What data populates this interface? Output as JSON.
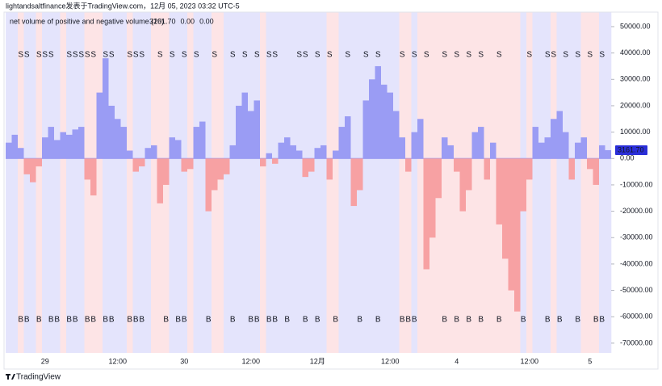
{
  "header": "lightandsaltfinance发表于TradingView.com，12月 05, 2023 03:32 UTC-5",
  "footer": "TradingView",
  "chart_data": {
    "type": "bar",
    "title": "net volume of positive and negative volume (20)",
    "legend_values": [
      {
        "label": "3161.70",
        "color": "#2a2ed8"
      },
      {
        "label": "0.00",
        "color": "#1b9a1b"
      },
      {
        "label": "0.00",
        "color": "#e0202a"
      }
    ],
    "positive_color": "#9a9cf4",
    "negative_color": "#f7a1a3",
    "sell_color": "#e0202a",
    "buy_color": "#1b8a1b",
    "grid": false,
    "ylim": [
      -73700,
      55500
    ],
    "yticks": [
      {
        "value": 50000,
        "label": "50000.00"
      },
      {
        "value": 40000,
        "label": "40000.00"
      },
      {
        "value": 30000,
        "label": "30000.00"
      },
      {
        "value": 20000,
        "label": "20000.00"
      },
      {
        "value": 10000,
        "label": "10000.00"
      },
      {
        "value": 0,
        "label": "0.00"
      },
      {
        "value": -10000,
        "label": "-10000.00"
      },
      {
        "value": -20000,
        "label": "-20000.00"
      },
      {
        "value": -30000,
        "label": "-30000.00"
      },
      {
        "value": -40000,
        "label": "-40000.00"
      },
      {
        "value": -50000,
        "label": "-50000.00"
      },
      {
        "value": -60000,
        "label": "-60000.00"
      },
      {
        "value": -70000,
        "label": "-70000.00"
      }
    ],
    "categories": [
      null,
      null,
      null,
      null,
      null,
      null,
      "29",
      null,
      null,
      null,
      null,
      null,
      null,
      null,
      null,
      null,
      null,
      null,
      "12:00",
      null,
      null,
      null,
      null,
      null,
      null,
      null,
      null,
      null,
      null,
      "30",
      null,
      null,
      null,
      null,
      null,
      null,
      null,
      null,
      null,
      null,
      "12:00",
      null,
      null,
      null,
      null,
      null,
      null,
      null,
      null,
      null,
      null,
      "12月",
      null,
      null,
      null,
      null,
      null,
      null,
      null,
      null,
      null,
      null,
      null,
      "12:00",
      null,
      null,
      null,
      null,
      null,
      null,
      null,
      null,
      null,
      null,
      "4",
      null,
      null,
      null,
      null,
      null,
      null,
      null,
      null,
      null,
      null,
      null,
      "12:00",
      null,
      null,
      null,
      null,
      null,
      null,
      null,
      null,
      null,
      "5",
      null,
      null,
      null
    ],
    "values": [
      6000,
      9000,
      4000,
      -6000,
      -9000,
      -3000,
      8000,
      12000,
      7000,
      10000,
      9000,
      11000,
      12000,
      -8000,
      -14000,
      25000,
      38000,
      20000,
      15000,
      12000,
      3000,
      -5000,
      -3000,
      4000,
      5000,
      -17000,
      -10000,
      8000,
      7000,
      -5000,
      -4000,
      12000,
      14000,
      -20000,
      -12000,
      -8000,
      -6000,
      5000,
      20000,
      25000,
      18000,
      22000,
      -3000,
      2000,
      -2000,
      6000,
      8000,
      5000,
      3000,
      -7000,
      -5000,
      4000,
      5000,
      -8000,
      3000,
      12000,
      16000,
      -18000,
      -12000,
      22000,
      30000,
      35000,
      28000,
      25000,
      18000,
      8000,
      -5000,
      10000,
      15000,
      -42000,
      -30000,
      -15000,
      8000,
      5000,
      -5000,
      -20000,
      -12000,
      10000,
      12000,
      -8000,
      6000,
      -25000,
      -38000,
      -50000,
      -58000,
      -20000,
      -8000,
      12000,
      6000,
      8000,
      15000,
      18000,
      10000,
      -8000,
      6000,
      8000,
      -4000,
      -10000,
      5000,
      3161.7
    ],
    "sell_signals": [
      null,
      null,
      "S",
      "S",
      null,
      "S",
      "S",
      "S",
      null,
      null,
      "S",
      "S",
      "S",
      "S",
      "S",
      null,
      "S",
      "S",
      null,
      null,
      "S",
      "S",
      "S",
      null,
      null,
      "S",
      null,
      "S",
      null,
      "S",
      null,
      "S",
      null,
      null,
      "S",
      null,
      null,
      "S",
      null,
      "S",
      null,
      "S",
      null,
      "S",
      "S",
      null,
      null,
      null,
      "S",
      "S",
      null,
      "S",
      null,
      "S",
      null,
      null,
      "S",
      null,
      null,
      "S",
      null,
      "S",
      null,
      null,
      null,
      "S",
      null,
      "S",
      null,
      "S",
      null,
      null,
      "S",
      null,
      "S",
      null,
      "S",
      null,
      "S",
      null,
      null,
      "S",
      null,
      null,
      null,
      null,
      "S",
      null,
      null,
      "S",
      "S",
      null,
      "S",
      null,
      "S",
      null,
      "S",
      null,
      "S",
      null
    ],
    "buy_signals": [
      null,
      null,
      "B",
      "B",
      null,
      "B",
      null,
      "B",
      "B",
      null,
      "B",
      "B",
      null,
      "B",
      "B",
      null,
      "B",
      "B",
      null,
      null,
      "B",
      "B",
      "B",
      null,
      null,
      null,
      "B",
      null,
      "B",
      "B",
      null,
      null,
      null,
      "B",
      null,
      null,
      null,
      "B",
      null,
      null,
      "B",
      "B",
      null,
      "B",
      "B",
      null,
      "B",
      null,
      null,
      "B",
      null,
      "B",
      null,
      null,
      "B",
      null,
      null,
      null,
      "B",
      null,
      null,
      "B",
      null,
      null,
      null,
      "B",
      "B",
      "B",
      null,
      null,
      null,
      null,
      "B",
      null,
      "B",
      null,
      "B",
      null,
      "B",
      null,
      null,
      "B",
      null,
      null,
      null,
      "B",
      null,
      null,
      null,
      "B",
      null,
      "B",
      null,
      null,
      "B",
      null,
      null,
      "B",
      "B",
      null
    ],
    "background_colors": [
      "#e4e4fc",
      "#e4e4fc",
      "#fde4e6",
      "#e4e4fc",
      "#e4e4fc",
      "#fde4e6",
      "#e4e4fc",
      "#e4e4fc",
      "#e4e4fc",
      "#fde4e6",
      "#e4e4fc",
      "#e4e4fc",
      "#e4e4fc",
      "#fde4e6",
      "#fde4e6",
      "#fde4e6",
      "#e4e4fc",
      "#e4e4fc",
      "#e4e4fc",
      "#e4e4fc",
      "#fde4e6",
      "#e4e4fc",
      "#e4e4fc",
      "#e4e4fc",
      "#fde4e6",
      "#fde4e6",
      "#fde4e6",
      "#e4e4fc",
      "#e4e4fc",
      "#e4e4fc",
      "#fde4e6",
      "#e4e4fc",
      "#e4e4fc",
      "#e4e4fc",
      "#fde4e6",
      "#fde4e6",
      "#e4e4fc",
      "#e4e4fc",
      "#e4e4fc",
      "#e4e4fc",
      "#e4e4fc",
      "#e4e4fc",
      "#fde4e6",
      "#e4e4fc",
      "#e4e4fc",
      "#e4e4fc",
      "#e4e4fc",
      "#e4e4fc",
      "#e4e4fc",
      "#e4e4fc",
      "#e4e4fc",
      "#e4e4fc",
      "#e4e4fc",
      "#fde4e6",
      "#fde4e6",
      "#e4e4fc",
      "#e4e4fc",
      "#e4e4fc",
      "#e4e4fc",
      "#e4e4fc",
      "#e4e4fc",
      "#e4e4fc",
      "#e4e4fc",
      "#e4e4fc",
      "#e4e4fc",
      "#fde4e6",
      "#fde4e6",
      "#e4e4fc",
      "#fde4e6",
      "#fde4e6",
      "#fde4e6",
      "#fde4e6",
      "#fde4e6",
      "#fde4e6",
      "#fde4e6",
      "#fde4e6",
      "#fde4e6",
      "#fde4e6",
      "#fde4e6",
      "#fde4e6",
      "#fde4e6",
      "#fde4e6",
      "#fde4e6",
      "#fde4e6",
      "#fde4e6",
      "#e4e4fc",
      "#fde4e6",
      "#e4e4fc",
      "#e4e4fc",
      "#e4e4fc",
      "#fde4e6",
      "#e4e4fc",
      "#e4e4fc",
      "#e4e4fc",
      "#e4e4fc",
      "#fde4e6",
      "#fde4e6",
      "#fde4e6",
      "#e4e4fc",
      "#e4e4fc"
    ]
  }
}
